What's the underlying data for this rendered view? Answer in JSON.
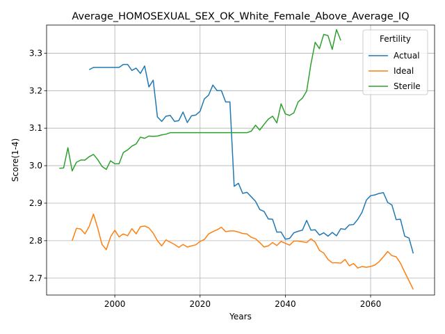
{
  "chart_data": {
    "type": "line",
    "title": "Average_HOMOSEXUAL_SEX_OK_White_Female_Above_Average_IQ",
    "xlabel": "Years",
    "ylabel": "Score(1-4)",
    "xlim": [
      1984,
      2075
    ],
    "ylim": [
      2.655,
      3.375
    ],
    "xticks": [
      2000,
      2020,
      2040,
      2060
    ],
    "yticks": [
      2.7,
      2.8,
      2.9,
      3.0,
      3.1,
      3.2,
      3.3
    ],
    "grid": true,
    "legend": {
      "title": "Fertility",
      "placement": "top-right"
    },
    "series": [
      {
        "name": "Actual",
        "color": "#1f77b4",
        "x": [
          1994,
          1995,
          1996,
          1997,
          1998,
          1999,
          2000,
          2001,
          2002,
          2003,
          2004,
          2005,
          2006,
          2007,
          2008,
          2009,
          2010,
          2011,
          2012,
          2013,
          2014,
          2015,
          2016,
          2017,
          2018,
          2019,
          2020,
          2021,
          2022,
          2023,
          2024,
          2025,
          2026,
          2027,
          2028,
          2029,
          2030,
          2031,
          2032,
          2033,
          2034,
          2035,
          2036,
          2037,
          2038,
          2039,
          2040,
          2041,
          2042,
          2043,
          2044,
          2045,
          2046,
          2047,
          2048,
          2049,
          2050,
          2051,
          2052,
          2053,
          2054,
          2055,
          2056,
          2057,
          2058,
          2059,
          2060,
          2061,
          2062,
          2063,
          2064,
          2065,
          2066,
          2067,
          2068,
          2069,
          2070
        ],
        "values": [
          3.256,
          3.262,
          3.262,
          3.262,
          3.262,
          3.262,
          3.262,
          3.262,
          3.27,
          3.27,
          3.254,
          3.26,
          3.246,
          3.266,
          3.21,
          3.228,
          3.13,
          3.118,
          3.132,
          3.134,
          3.118,
          3.12,
          3.143,
          3.115,
          3.133,
          3.135,
          3.145,
          3.178,
          3.188,
          3.215,
          3.2,
          3.2,
          3.17,
          3.17,
          2.945,
          2.953,
          2.926,
          2.929,
          2.917,
          2.905,
          2.883,
          2.878,
          2.858,
          2.857,
          2.823,
          2.823,
          2.804,
          2.806,
          2.821,
          2.825,
          2.828,
          2.854,
          2.828,
          2.829,
          2.815,
          2.821,
          2.812,
          2.822,
          2.813,
          2.832,
          2.83,
          2.842,
          2.843,
          2.857,
          2.876,
          2.908,
          2.92,
          2.922,
          2.926,
          2.928,
          2.902,
          2.895,
          2.856,
          2.857,
          2.812,
          2.807,
          2.766
        ]
      },
      {
        "name": "Ideal",
        "color": "#ff7f0e",
        "x": [
          1990,
          1991,
          1992,
          1993,
          1994,
          1995,
          1996,
          1997,
          1998,
          1999,
          2000,
          2001,
          2002,
          2003,
          2004,
          2005,
          2006,
          2007,
          2008,
          2009,
          2010,
          2011,
          2012,
          2013,
          2014,
          2015,
          2016,
          2017,
          2018,
          2019,
          2020,
          2021,
          2022,
          2023,
          2024,
          2025,
          2026,
          2027,
          2028,
          2029,
          2030,
          2031,
          2032,
          2033,
          2034,
          2035,
          2036,
          2037,
          2038,
          2039,
          2040,
          2041,
          2042,
          2043,
          2044,
          2045,
          2046,
          2047,
          2048,
          2049,
          2050,
          2051,
          2052,
          2053,
          2054,
          2055,
          2056,
          2057,
          2058,
          2059,
          2060,
          2061,
          2062,
          2063,
          2064,
          2065,
          2066,
          2067,
          2068,
          2069,
          2070
        ],
        "values": [
          2.8,
          2.833,
          2.831,
          2.818,
          2.838,
          2.871,
          2.833,
          2.79,
          2.776,
          2.81,
          2.828,
          2.81,
          2.818,
          2.813,
          2.832,
          2.818,
          2.837,
          2.839,
          2.834,
          2.82,
          2.8,
          2.786,
          2.802,
          2.796,
          2.79,
          2.782,
          2.79,
          2.783,
          2.786,
          2.789,
          2.798,
          2.803,
          2.818,
          2.824,
          2.829,
          2.836,
          2.824,
          2.826,
          2.826,
          2.823,
          2.819,
          2.818,
          2.809,
          2.805,
          2.795,
          2.783,
          2.786,
          2.795,
          2.787,
          2.798,
          2.793,
          2.788,
          2.799,
          2.799,
          2.797,
          2.795,
          2.805,
          2.796,
          2.774,
          2.767,
          2.75,
          2.741,
          2.741,
          2.74,
          2.75,
          2.733,
          2.739,
          2.727,
          2.731,
          2.729,
          2.731,
          2.735,
          2.744,
          2.757,
          2.771,
          2.76,
          2.757,
          2.74,
          2.716,
          2.693,
          2.67
        ]
      },
      {
        "name": "Sterile",
        "color": "#2ca02c",
        "x": [
          1987,
          1988,
          1989,
          1990,
          1991,
          1992,
          1993,
          1994,
          1995,
          1996,
          1997,
          1998,
          1999,
          2000,
          2001,
          2002,
          2003,
          2004,
          2005,
          2006,
          2007,
          2008,
          2009,
          2010,
          2011,
          2012,
          2013,
          2014,
          2015,
          2016,
          2017,
          2018,
          2019,
          2020,
          2021,
          2022,
          2023,
          2024,
          2025,
          2026,
          2027,
          2028,
          2029,
          2030,
          2031,
          2032,
          2033,
          2034,
          2035,
          2036,
          2037,
          2038,
          2039,
          2040,
          2041,
          2042,
          2043,
          2044,
          2045,
          2046,
          2047,
          2048,
          2049,
          2050,
          2051,
          2052,
          2053
        ],
        "values": [
          2.993,
          2.994,
          3.048,
          2.986,
          3.009,
          3.015,
          3.015,
          3.024,
          3.03,
          3.016,
          2.998,
          2.99,
          3.013,
          3.005,
          3.005,
          3.035,
          3.042,
          3.052,
          3.058,
          3.076,
          3.073,
          3.079,
          3.078,
          3.079,
          3.082,
          3.084,
          3.088,
          3.088,
          3.088,
          3.088,
          3.088,
          3.088,
          3.088,
          3.088,
          3.088,
          3.088,
          3.088,
          3.088,
          3.088,
          3.088,
          3.088,
          3.088,
          3.088,
          3.088,
          3.088,
          3.092,
          3.108,
          3.095,
          3.11,
          3.124,
          3.132,
          3.114,
          3.165,
          3.138,
          3.134,
          3.141,
          3.17,
          3.18,
          3.199,
          3.271,
          3.329,
          3.312,
          3.35,
          3.347,
          3.31,
          3.363,
          3.334
        ]
      }
    ]
  }
}
